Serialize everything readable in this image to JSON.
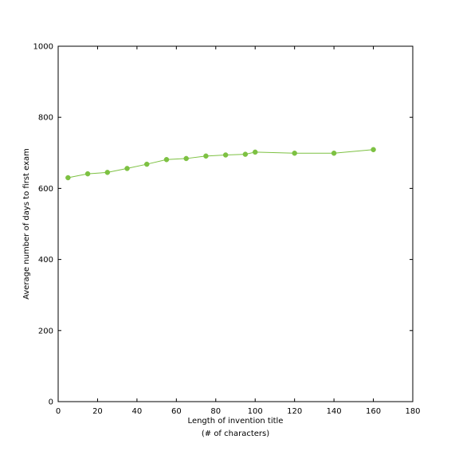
{
  "chart_data": {
    "type": "line",
    "xlabel": "Length of invention title",
    "xlabel_sub": "(# of characters)",
    "ylabel": "Average number of days to first exam",
    "xlim": [
      0,
      180
    ],
    "ylim": [
      0,
      1000
    ],
    "x_ticks": [
      0,
      20,
      40,
      60,
      80,
      100,
      120,
      140,
      160,
      180
    ],
    "y_ticks": [
      0,
      200,
      400,
      600,
      800,
      1000
    ],
    "grid": false,
    "series": [
      {
        "color": "#7dc142",
        "x": [
          5,
          15,
          25,
          35,
          45,
          55,
          65,
          75,
          85,
          95,
          100,
          120,
          140,
          160
        ],
        "y": [
          630,
          641,
          645,
          656,
          668,
          681,
          684,
          691,
          694,
          696,
          702,
          699,
          699,
          709
        ]
      }
    ]
  }
}
